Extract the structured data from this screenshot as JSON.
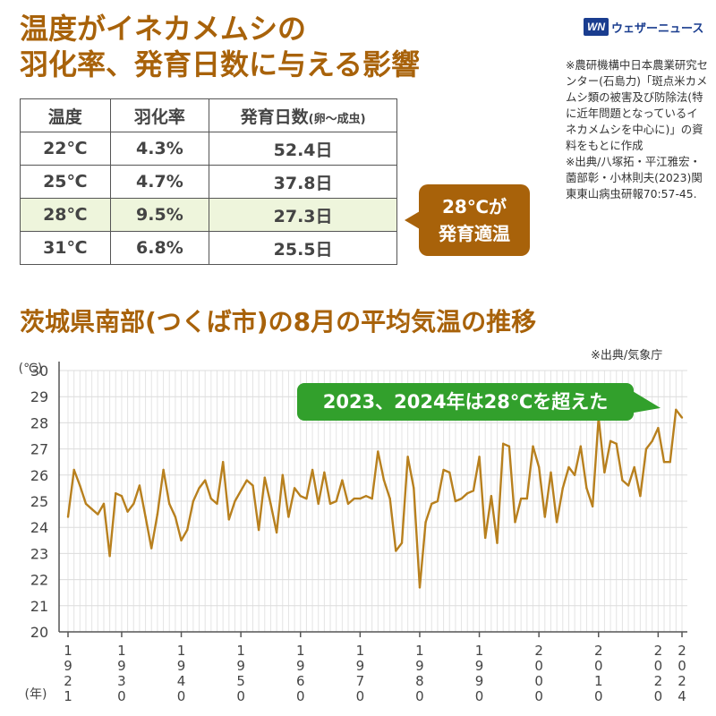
{
  "header": {
    "title_line1": "温度がイネカメムシの",
    "title_line2": "羽化率、発育日数に与える影響"
  },
  "logo": {
    "mark": "WN",
    "text": "ウェザーニュース"
  },
  "notes": [
    "※農研機構中日本農業研究センター(石島力)「斑点米カメムシ類の被害及び防除法(特に近年問題となっているイネカメムシを中心に)」の資料をもとに作成",
    "※出典/八塚拓・平江雅宏・薗部彰・小林則夫(2023)関東東山病虫研報70:57-45."
  ],
  "table": {
    "headers": {
      "temp": "温度",
      "rate": "羽化率",
      "days": "発育日数",
      "days_note": "(卵〜成虫)"
    },
    "rows": [
      {
        "temp": "22℃",
        "rate": "4.3%",
        "days": "52.4日"
      },
      {
        "temp": "25℃",
        "rate": "4.7%",
        "days": "37.8日"
      },
      {
        "temp": "28℃",
        "rate": "9.5%",
        "days": "27.3日"
      },
      {
        "temp": "31℃",
        "rate": "6.8%",
        "days": "25.5日"
      }
    ],
    "highlight_row": 2,
    "highlight_color": "#eef5dc"
  },
  "bubble": {
    "line1": "28℃が",
    "line2": "発育適温",
    "color": "#a8620a"
  },
  "chart_title": "茨城県南部(つくば市)の8月の平均気温の推移",
  "chart_source": "※出典/気象庁",
  "callout": {
    "text": "2023、2024年は28℃を超えた",
    "color": "#32a02c"
  },
  "chart_data": {
    "type": "line",
    "title": "茨城県南部(つくば市)の8月の平均気温の推移",
    "y_unit": "(℃)",
    "x_unit": "(年)",
    "ylim": [
      20,
      30
    ],
    "yticks": [
      20,
      21,
      22,
      23,
      24,
      25,
      26,
      27,
      28,
      29,
      30
    ],
    "xlim": [
      1921,
      2024
    ],
    "xticks": [
      1921,
      1930,
      1940,
      1950,
      1960,
      1970,
      1980,
      1990,
      2000,
      2010,
      2020,
      2024
    ],
    "grid": true,
    "line_color": "#b8801e",
    "x": [
      1921,
      1922,
      1923,
      1924,
      1925,
      1926,
      1927,
      1928,
      1929,
      1930,
      1931,
      1932,
      1933,
      1934,
      1935,
      1936,
      1937,
      1938,
      1939,
      1940,
      1941,
      1942,
      1943,
      1944,
      1945,
      1946,
      1947,
      1948,
      1949,
      1950,
      1951,
      1952,
      1953,
      1954,
      1955,
      1956,
      1957,
      1958,
      1959,
      1960,
      1961,
      1962,
      1963,
      1964,
      1965,
      1966,
      1967,
      1968,
      1969,
      1970,
      1971,
      1972,
      1973,
      1974,
      1975,
      1976,
      1977,
      1978,
      1979,
      1980,
      1981,
      1982,
      1983,
      1984,
      1985,
      1986,
      1987,
      1988,
      1989,
      1990,
      1991,
      1992,
      1993,
      1994,
      1995,
      1996,
      1997,
      1998,
      1999,
      2000,
      2001,
      2002,
      2003,
      2004,
      2005,
      2006,
      2007,
      2008,
      2009,
      2010,
      2011,
      2012,
      2013,
      2014,
      2015,
      2016,
      2017,
      2018,
      2019,
      2020,
      2021,
      2022,
      2023,
      2024
    ],
    "values": [
      24.4,
      26.2,
      25.6,
      24.9,
      24.7,
      24.5,
      24.9,
      22.9,
      25.3,
      25.2,
      24.6,
      24.9,
      25.6,
      24.4,
      23.2,
      24.5,
      26.2,
      24.9,
      24.4,
      23.5,
      23.9,
      25.0,
      25.5,
      25.8,
      25.1,
      24.9,
      26.5,
      24.3,
      25.0,
      25.4,
      25.8,
      25.6,
      23.9,
      25.9,
      24.9,
      23.8,
      26.0,
      24.4,
      25.5,
      25.2,
      25.1,
      26.2,
      24.9,
      26.1,
      24.9,
      25.0,
      25.8,
      24.9,
      25.1,
      25.1,
      25.2,
      25.1,
      26.9,
      25.8,
      25.1,
      23.1,
      23.4,
      26.7,
      25.5,
      21.7,
      24.2,
      24.9,
      25.0,
      26.2,
      26.1,
      25.0,
      25.1,
      25.3,
      25.4,
      26.7,
      23.6,
      25.2,
      23.4,
      27.2,
      27.1,
      24.2,
      25.1,
      25.1,
      27.1,
      26.3,
      24.4,
      26.1,
      24.2,
      25.5,
      26.3,
      26.0,
      27.1,
      25.5,
      24.8,
      28.2,
      26.1,
      27.3,
      27.2,
      25.8,
      25.6,
      26.3,
      25.2,
      27.0,
      27.3,
      27.8,
      26.5,
      26.5,
      28.5,
      28.2
    ]
  }
}
